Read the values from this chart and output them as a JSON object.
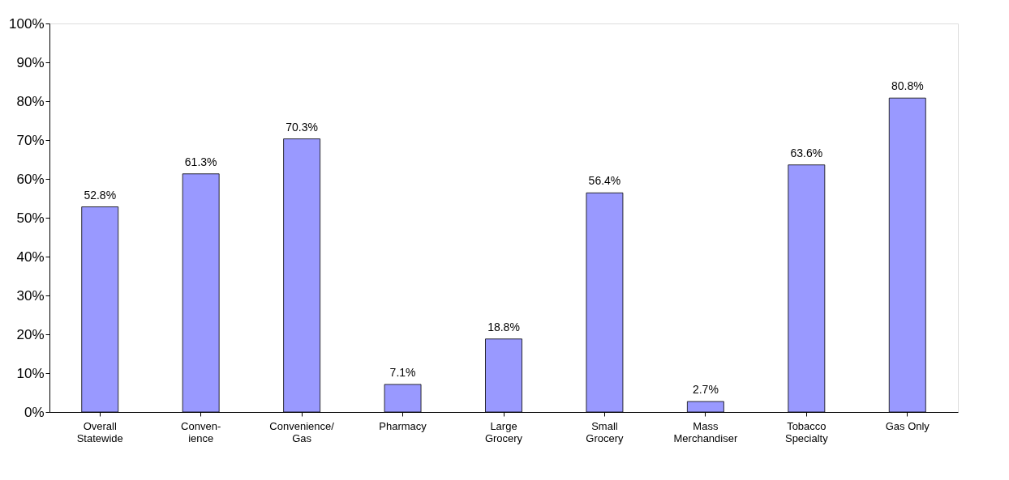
{
  "chart_data": {
    "type": "bar",
    "categories": [
      "Overall\nStatewide",
      "Conven-\nience",
      "Convenience/\nGas",
      "Pharmacy",
      "Large\nGrocery",
      "Small\nGrocery",
      "Mass\nMerchandiser",
      "Tobacco\nSpecialty",
      "Gas Only"
    ],
    "values": [
      52.8,
      61.3,
      70.3,
      7.1,
      18.8,
      56.4,
      2.7,
      63.6,
      80.8
    ],
    "value_labels": [
      "52.8%",
      "61.3%",
      "70.3%",
      "7.1%",
      "18.8%",
      "56.4%",
      "2.7%",
      "63.6%",
      "80.8%"
    ],
    "color": "#9999ff",
    "ylim": [
      0,
      100
    ],
    "yticks": [
      {
        "value": 0,
        "label": "0%"
      },
      {
        "value": 10,
        "label": "10%"
      },
      {
        "value": 20,
        "label": "20%"
      },
      {
        "value": 30,
        "label": "30%"
      },
      {
        "value": 40,
        "label": "40%"
      },
      {
        "value": 50,
        "label": "50%"
      },
      {
        "value": 60,
        "label": "60%"
      },
      {
        "value": 70,
        "label": "70%"
      },
      {
        "value": 80,
        "label": "80%"
      },
      {
        "value": 90,
        "label": "90%"
      },
      {
        "value": 100,
        "label": "100%"
      }
    ],
    "grid": false
  }
}
